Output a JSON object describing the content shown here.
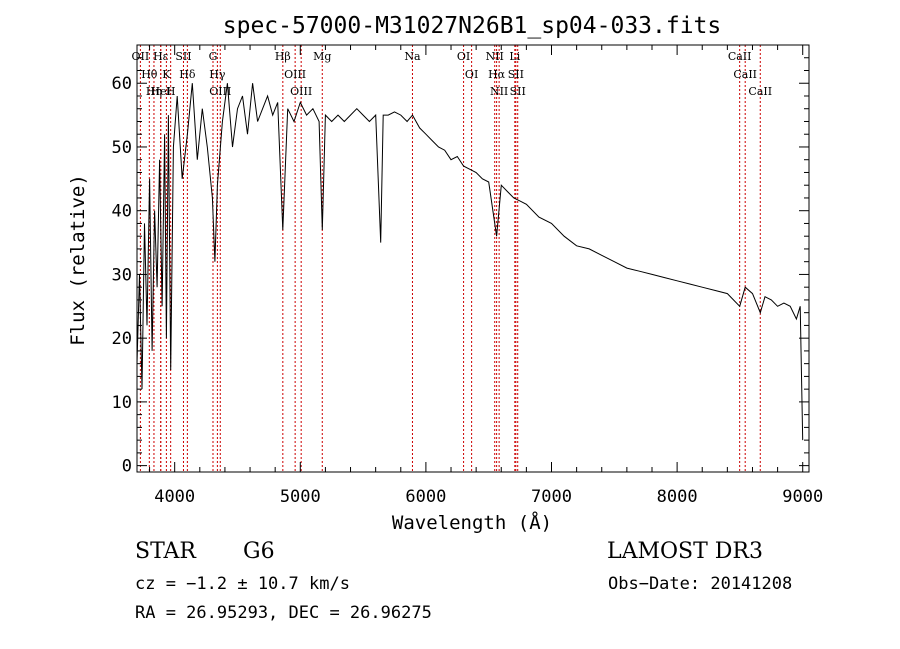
{
  "chart_data": {
    "type": "line",
    "title": "spec-57000-M31027N26B1_sp04-033.fits",
    "xlabel": "Wavelength (Å)",
    "ylabel": "Flux (relative)",
    "xlim": [
      3700,
      9050
    ],
    "ylim": [
      -1,
      66
    ],
    "grid": false,
    "x_ticks": [
      4000,
      5000,
      6000,
      7000,
      8000,
      9000
    ],
    "y_ticks": [
      0,
      10,
      20,
      30,
      40,
      50,
      60
    ],
    "series": [
      {
        "name": "spectrum",
        "color": "#000000",
        "x": [
          3700,
          3720,
          3740,
          3760,
          3780,
          3800,
          3820,
          3840,
          3860,
          3880,
          3900,
          3920,
          3934,
          3950,
          3968,
          3990,
          4020,
          4060,
          4101,
          4140,
          4180,
          4220,
          4260,
          4300,
          4320,
          4340,
          4380,
          4420,
          4460,
          4500,
          4540,
          4580,
          4620,
          4660,
          4700,
          4740,
          4780,
          4820,
          4861,
          4900,
          4950,
          5000,
          5050,
          5100,
          5150,
          5175,
          5200,
          5250,
          5300,
          5350,
          5400,
          5450,
          5500,
          5550,
          5600,
          5640,
          5660,
          5700,
          5750,
          5800,
          5850,
          5893,
          5950,
          6000,
          6050,
          6100,
          6150,
          6200,
          6250,
          6300,
          6350,
          6400,
          6450,
          6500,
          6563,
          6600,
          6650,
          6700,
          6750,
          6800,
          6900,
          7000,
          7100,
          7200,
          7300,
          7400,
          7500,
          7600,
          7700,
          7800,
          7900,
          8000,
          8100,
          8200,
          8300,
          8400,
          8498,
          8542,
          8600,
          8662,
          8700,
          8750,
          8800,
          8850,
          8900,
          8950,
          8980,
          9000
        ],
        "values": [
          16,
          30,
          12,
          38,
          22,
          45,
          18,
          40,
          28,
          48,
          25,
          52,
          20,
          55,
          15,
          50,
          58,
          45,
          52,
          60,
          48,
          56,
          50,
          42,
          32,
          44,
          54,
          60,
          50,
          56,
          58,
          52,
          60,
          54,
          56,
          58,
          55,
          57,
          37,
          56,
          54,
          57,
          55,
          56,
          54,
          37,
          55,
          54,
          55,
          54,
          55,
          56,
          55,
          54,
          55,
          35,
          55,
          55,
          55.5,
          55,
          54,
          55,
          53,
          52,
          51,
          50,
          49.5,
          48,
          48.5,
          47,
          46.5,
          46,
          45,
          44.5,
          36,
          44,
          43,
          42,
          41.5,
          41,
          39,
          38,
          36,
          34.5,
          34,
          33,
          32,
          31,
          30.5,
          30,
          29.5,
          29,
          28.5,
          28,
          27.5,
          27,
          25,
          28,
          27,
          24,
          26.5,
          26,
          25,
          25.5,
          25,
          23,
          25,
          4
        ]
      }
    ],
    "lines": [
      {
        "name": "Hθ",
        "wavelength": 3798
      },
      {
        "name": "OII",
        "wavelength": 3727
      },
      {
        "name": "Hη",
        "wavelength": 3835
      },
      {
        "name": "Hε",
        "wavelength": 3889
      },
      {
        "name": "HeI",
        "wavelength": 3889
      },
      {
        "name": "K",
        "wavelength": 3934
      },
      {
        "name": "SII",
        "wavelength": 4070
      },
      {
        "name": "H",
        "wavelength": 3968
      },
      {
        "name": "Hδ",
        "wavelength": 4101
      },
      {
        "name": "OIII",
        "wavelength": 4363
      },
      {
        "name": "Hγ",
        "wavelength": 4340
      },
      {
        "name": "G",
        "wavelength": 4305
      },
      {
        "name": "Hβ",
        "wavelength": 4861
      },
      {
        "name": "OIII",
        "wavelength": 5007
      },
      {
        "name": "OIII",
        "wavelength": 4959
      },
      {
        "name": "Mg",
        "wavelength": 5175
      },
      {
        "name": "Na",
        "wavelength": 5893
      },
      {
        "name": "OI",
        "wavelength": 6300
      },
      {
        "name": "OI",
        "wavelength": 6364
      },
      {
        "name": "Hα",
        "wavelength": 6563
      },
      {
        "name": "NII",
        "wavelength": 6548
      },
      {
        "name": "NII",
        "wavelength": 6583
      },
      {
        "name": "SII",
        "wavelength": 6716
      },
      {
        "name": "Li",
        "wavelength": 6708
      },
      {
        "name": "SII",
        "wavelength": 6731
      },
      {
        "name": "CaII",
        "wavelength": 8542
      },
      {
        "name": "CaII",
        "wavelength": 8498
      },
      {
        "name": "CaII",
        "wavelength": 8662
      }
    ]
  },
  "info": {
    "class_label": "STAR",
    "subclass": "G6",
    "survey": "LAMOST DR3",
    "cz_text": "cz = −1.2 ± 10.7 km/s",
    "obs_date": "Obs−Date: 20141208",
    "coords_text": "RA =  26.95293, DEC =  26.96275"
  },
  "colors": {
    "axis": "#000000",
    "spectrum": "#000000",
    "line_marker": "#cc0000"
  }
}
